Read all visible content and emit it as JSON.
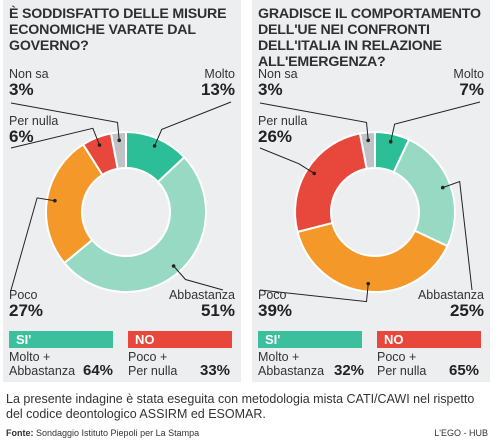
{
  "colors": {
    "molto": "#2cbf97",
    "abbastanza": "#97d9c3",
    "poco": "#f5982a",
    "per_nulla": "#e8473b",
    "non_sa": "#bfc3c6",
    "si_badge": "#3bbf9c",
    "no_badge": "#e8473b"
  },
  "chart_data": [
    {
      "type": "pie",
      "title": "È SODDISFATTO DELLE MISURE ECONOMICHE VARATE DAL GOVERNO?",
      "categories": [
        "Molto",
        "Abbastanza",
        "Poco",
        "Per nulla",
        "Non sa"
      ],
      "values": [
        13,
        51,
        27,
        6,
        3
      ],
      "value_labels": [
        "13%",
        "51%",
        "27%",
        "6%",
        "3%"
      ],
      "summary": {
        "si_label": "SI'",
        "si_desc_1": "Molto +",
        "si_desc_2": "Abbastanza",
        "si_value": "64%",
        "no_label": "NO",
        "no_desc_1": "Poco +",
        "no_desc_2": "Per nulla",
        "no_value": "33%"
      }
    },
    {
      "type": "pie",
      "title": "GRADISCE IL COMPORTAMENTO DELL'UE NEI CONFRONTI DELL'ITALIA IN RELAZIONE ALL'EMERGENZA?",
      "categories": [
        "Molto",
        "Abbastanza",
        "Poco",
        "Per nulla",
        "Non sa"
      ],
      "values": [
        7,
        25,
        39,
        26,
        3
      ],
      "value_labels": [
        "7%",
        "25%",
        "39%",
        "26%",
        "3%"
      ],
      "summary": {
        "si_label": "SI'",
        "si_desc_1": "Molto +",
        "si_desc_2": "Abbastanza",
        "si_value": "32%",
        "no_label": "NO",
        "no_desc_1": "Poco +",
        "no_desc_2": "Per nulla",
        "no_value": "65%"
      }
    }
  ],
  "footer": {
    "text": "La presente indagine è stata eseguita con metodologia mista CATI/CAWI nel rispetto del codice deontologico ASSIRM ed ESOMAR.",
    "source_label": "Fonte:",
    "source_text": " Sondaggio Istituto Piepoli per La Stampa",
    "credit": "L'EGO - HUB"
  }
}
